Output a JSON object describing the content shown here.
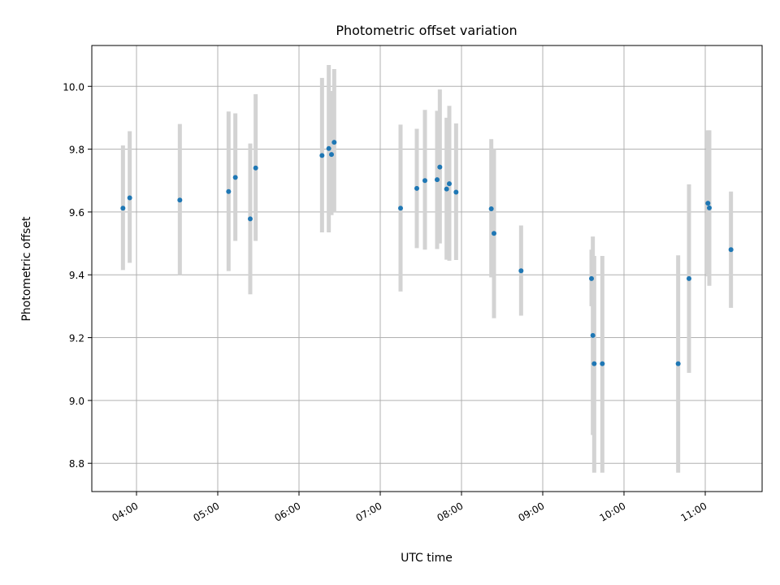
{
  "chart_data": {
    "type": "scatter",
    "title": "Photometric offset variation",
    "xlabel": "UTC time",
    "ylabel": "Photometric offset",
    "x_ticks": [
      "04:00",
      "05:00",
      "06:00",
      "07:00",
      "08:00",
      "09:00",
      "10:00",
      "11:00"
    ],
    "y_ticks": [
      "8.8",
      "9.0",
      "9.2",
      "9.4",
      "9.6",
      "9.8",
      "10.0"
    ],
    "xlim": [
      "03:27",
      "11:42"
    ],
    "ylim": [
      8.71,
      10.13
    ],
    "grid": true,
    "point_color": "#1f77b4",
    "errorbar_color": "#d3d3d3",
    "points": [
      {
        "x": "03:50",
        "y": 9.612,
        "low": 9.415,
        "high": 9.812
      },
      {
        "x": "03:55",
        "y": 9.645,
        "low": 9.438,
        "high": 9.857
      },
      {
        "x": "04:32",
        "y": 9.638,
        "low": 9.4,
        "high": 9.88
      },
      {
        "x": "05:08",
        "y": 9.665,
        "low": 9.412,
        "high": 9.92
      },
      {
        "x": "05:13",
        "y": 9.71,
        "low": 9.508,
        "high": 9.914
      },
      {
        "x": "05:24",
        "y": 9.578,
        "low": 9.338,
        "high": 9.818
      },
      {
        "x": "05:28",
        "y": 9.74,
        "low": 9.508,
        "high": 9.975
      },
      {
        "x": "06:17",
        "y": 9.78,
        "low": 9.535,
        "high": 10.027
      },
      {
        "x": "06:22",
        "y": 9.802,
        "low": 9.535,
        "high": 10.068
      },
      {
        "x": "06:24",
        "y": 9.783,
        "low": 9.59,
        "high": 9.985
      },
      {
        "x": "06:26",
        "y": 9.822,
        "low": 9.598,
        "high": 10.055
      },
      {
        "x": "07:15",
        "y": 9.612,
        "low": 9.347,
        "high": 9.878
      },
      {
        "x": "07:27",
        "y": 9.675,
        "low": 9.485,
        "high": 9.865
      },
      {
        "x": "07:33",
        "y": 9.7,
        "low": 9.48,
        "high": 9.925
      },
      {
        "x": "07:42",
        "y": 9.703,
        "low": 9.482,
        "high": 9.922
      },
      {
        "x": "07:44",
        "y": 9.743,
        "low": 9.5,
        "high": 9.99
      },
      {
        "x": "07:49",
        "y": 9.673,
        "low": 9.448,
        "high": 9.9
      },
      {
        "x": "07:51",
        "y": 9.69,
        "low": 9.445,
        "high": 9.938
      },
      {
        "x": "07:56",
        "y": 9.663,
        "low": 9.447,
        "high": 9.882
      },
      {
        "x": "08:22",
        "y": 9.61,
        "low": 9.392,
        "high": 9.832
      },
      {
        "x": "08:24",
        "y": 9.532,
        "low": 9.262,
        "high": 9.802
      },
      {
        "x": "08:44",
        "y": 9.413,
        "low": 9.27,
        "high": 9.557
      },
      {
        "x": "09:36",
        "y": 9.388,
        "low": 9.3,
        "high": 9.48
      },
      {
        "x": "09:37",
        "y": 9.207,
        "low": 8.89,
        "high": 9.522
      },
      {
        "x": "09:38",
        "y": 9.117,
        "low": 8.77,
        "high": 9.46
      },
      {
        "x": "09:44",
        "y": 9.117,
        "low": 8.77,
        "high": 9.46
      },
      {
        "x": "10:40",
        "y": 9.117,
        "low": 8.77,
        "high": 9.462
      },
      {
        "x": "10:48",
        "y": 9.388,
        "low": 9.088,
        "high": 9.688
      },
      {
        "x": "11:02",
        "y": 9.628,
        "low": 9.395,
        "high": 9.86
      },
      {
        "x": "11:03",
        "y": 9.613,
        "low": 9.365,
        "high": 9.86
      },
      {
        "x": "11:19",
        "y": 9.48,
        "low": 9.295,
        "high": 9.665
      }
    ]
  }
}
